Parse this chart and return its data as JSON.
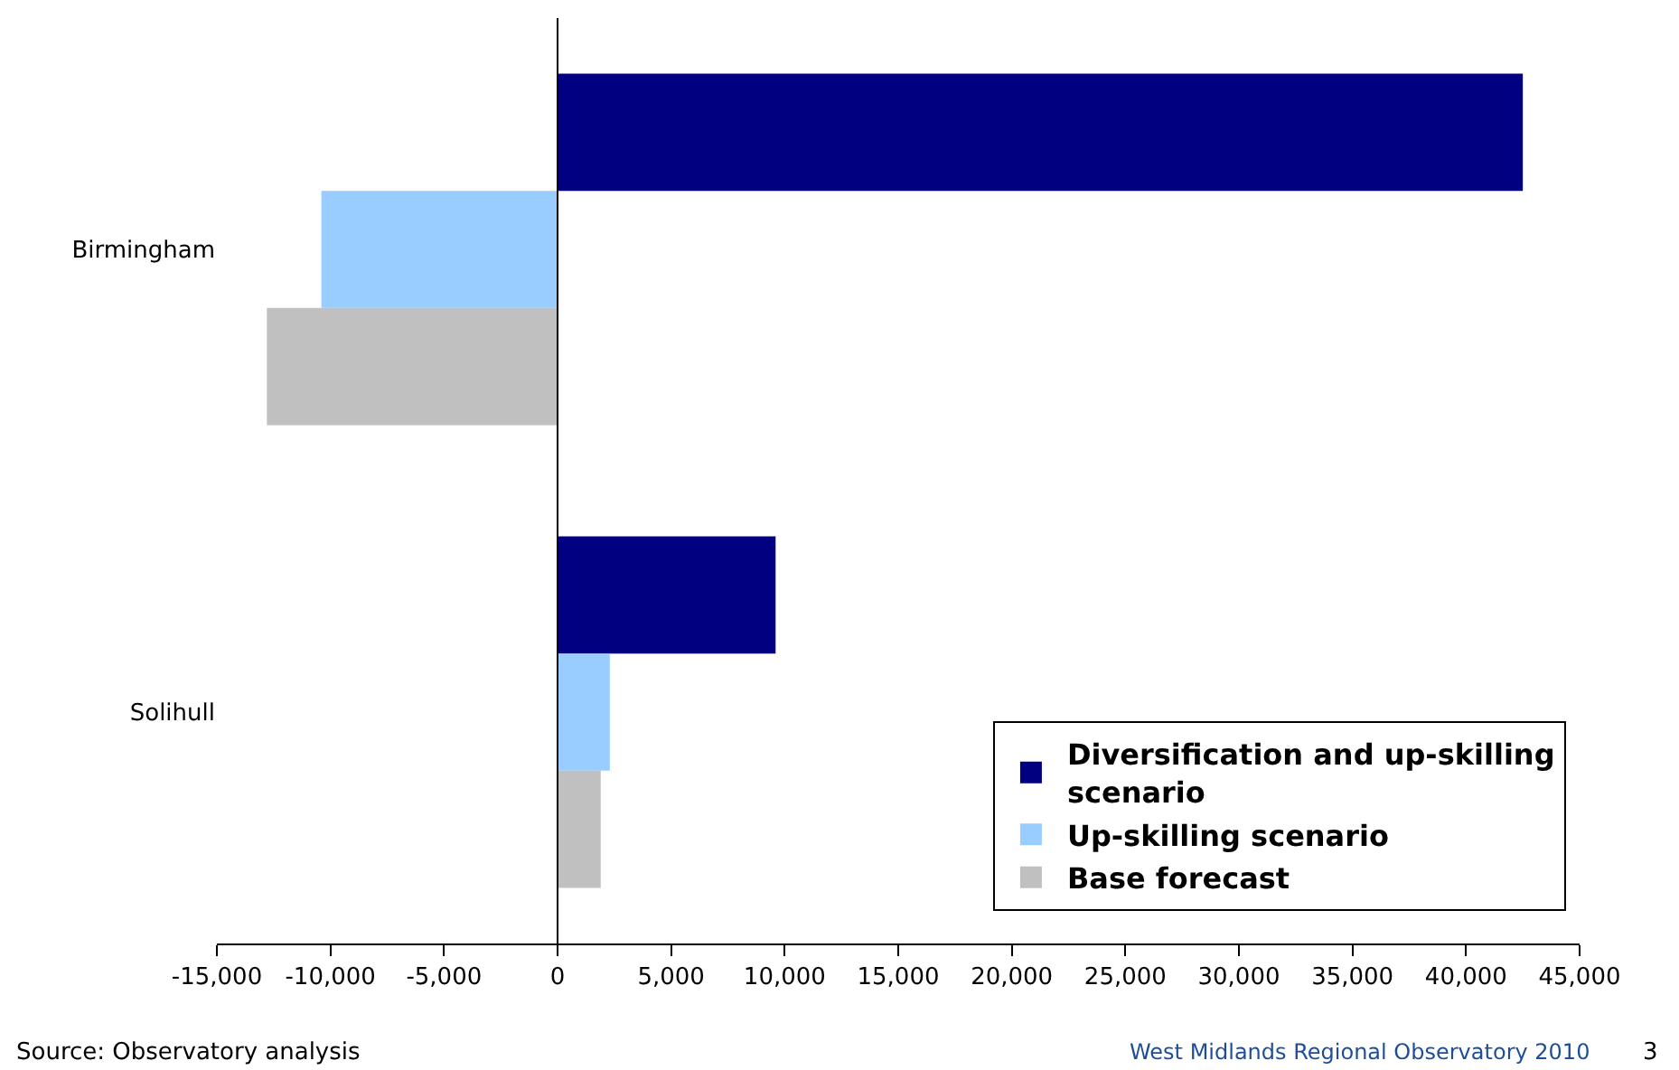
{
  "chart_data": {
    "type": "bar",
    "orientation": "horizontal",
    "categories": [
      "Birmingham",
      "Solihull"
    ],
    "series": [
      {
        "name": "Diversification and up-skilling scenario",
        "color": "#000080",
        "values": [
          42500,
          9600
        ]
      },
      {
        "name": "Up-skilling scenario",
        "color": "#99ccff",
        "values": [
          -10400,
          2300
        ]
      },
      {
        "name": "Base forecast",
        "color": "#c0c0c0",
        "values": [
          -12800,
          1900
        ]
      }
    ],
    "xlim": [
      -15000,
      45000
    ],
    "xticks": [
      {
        "value": -15000,
        "label": "-15,000"
      },
      {
        "value": -10000,
        "label": "-10,000"
      },
      {
        "value": -5000,
        "label": "-5,000"
      },
      0,
      {
        "value": 5000,
        "label": "5,000"
      },
      {
        "value": 10000,
        "label": "10,000"
      },
      {
        "value": 15000,
        "label": "15,000"
      },
      {
        "value": 20000,
        "label": "20,000"
      },
      {
        "value": 25000,
        "label": "25,000"
      },
      {
        "value": 30000,
        "label": "30,000"
      },
      {
        "value": 35000,
        "label": "35,000"
      },
      {
        "value": 40000,
        "label": "40,000"
      },
      {
        "value": 45000,
        "label": "45,000"
      }
    ],
    "legend": "bottom right",
    "ref_lines": [
      {
        "axis": "x",
        "value": 0,
        "color": "#000000"
      }
    ],
    "annotations": [
      "Source: Observatory analysis",
      "West Midlands Regional Observatory 2010",
      "3"
    ]
  }
}
